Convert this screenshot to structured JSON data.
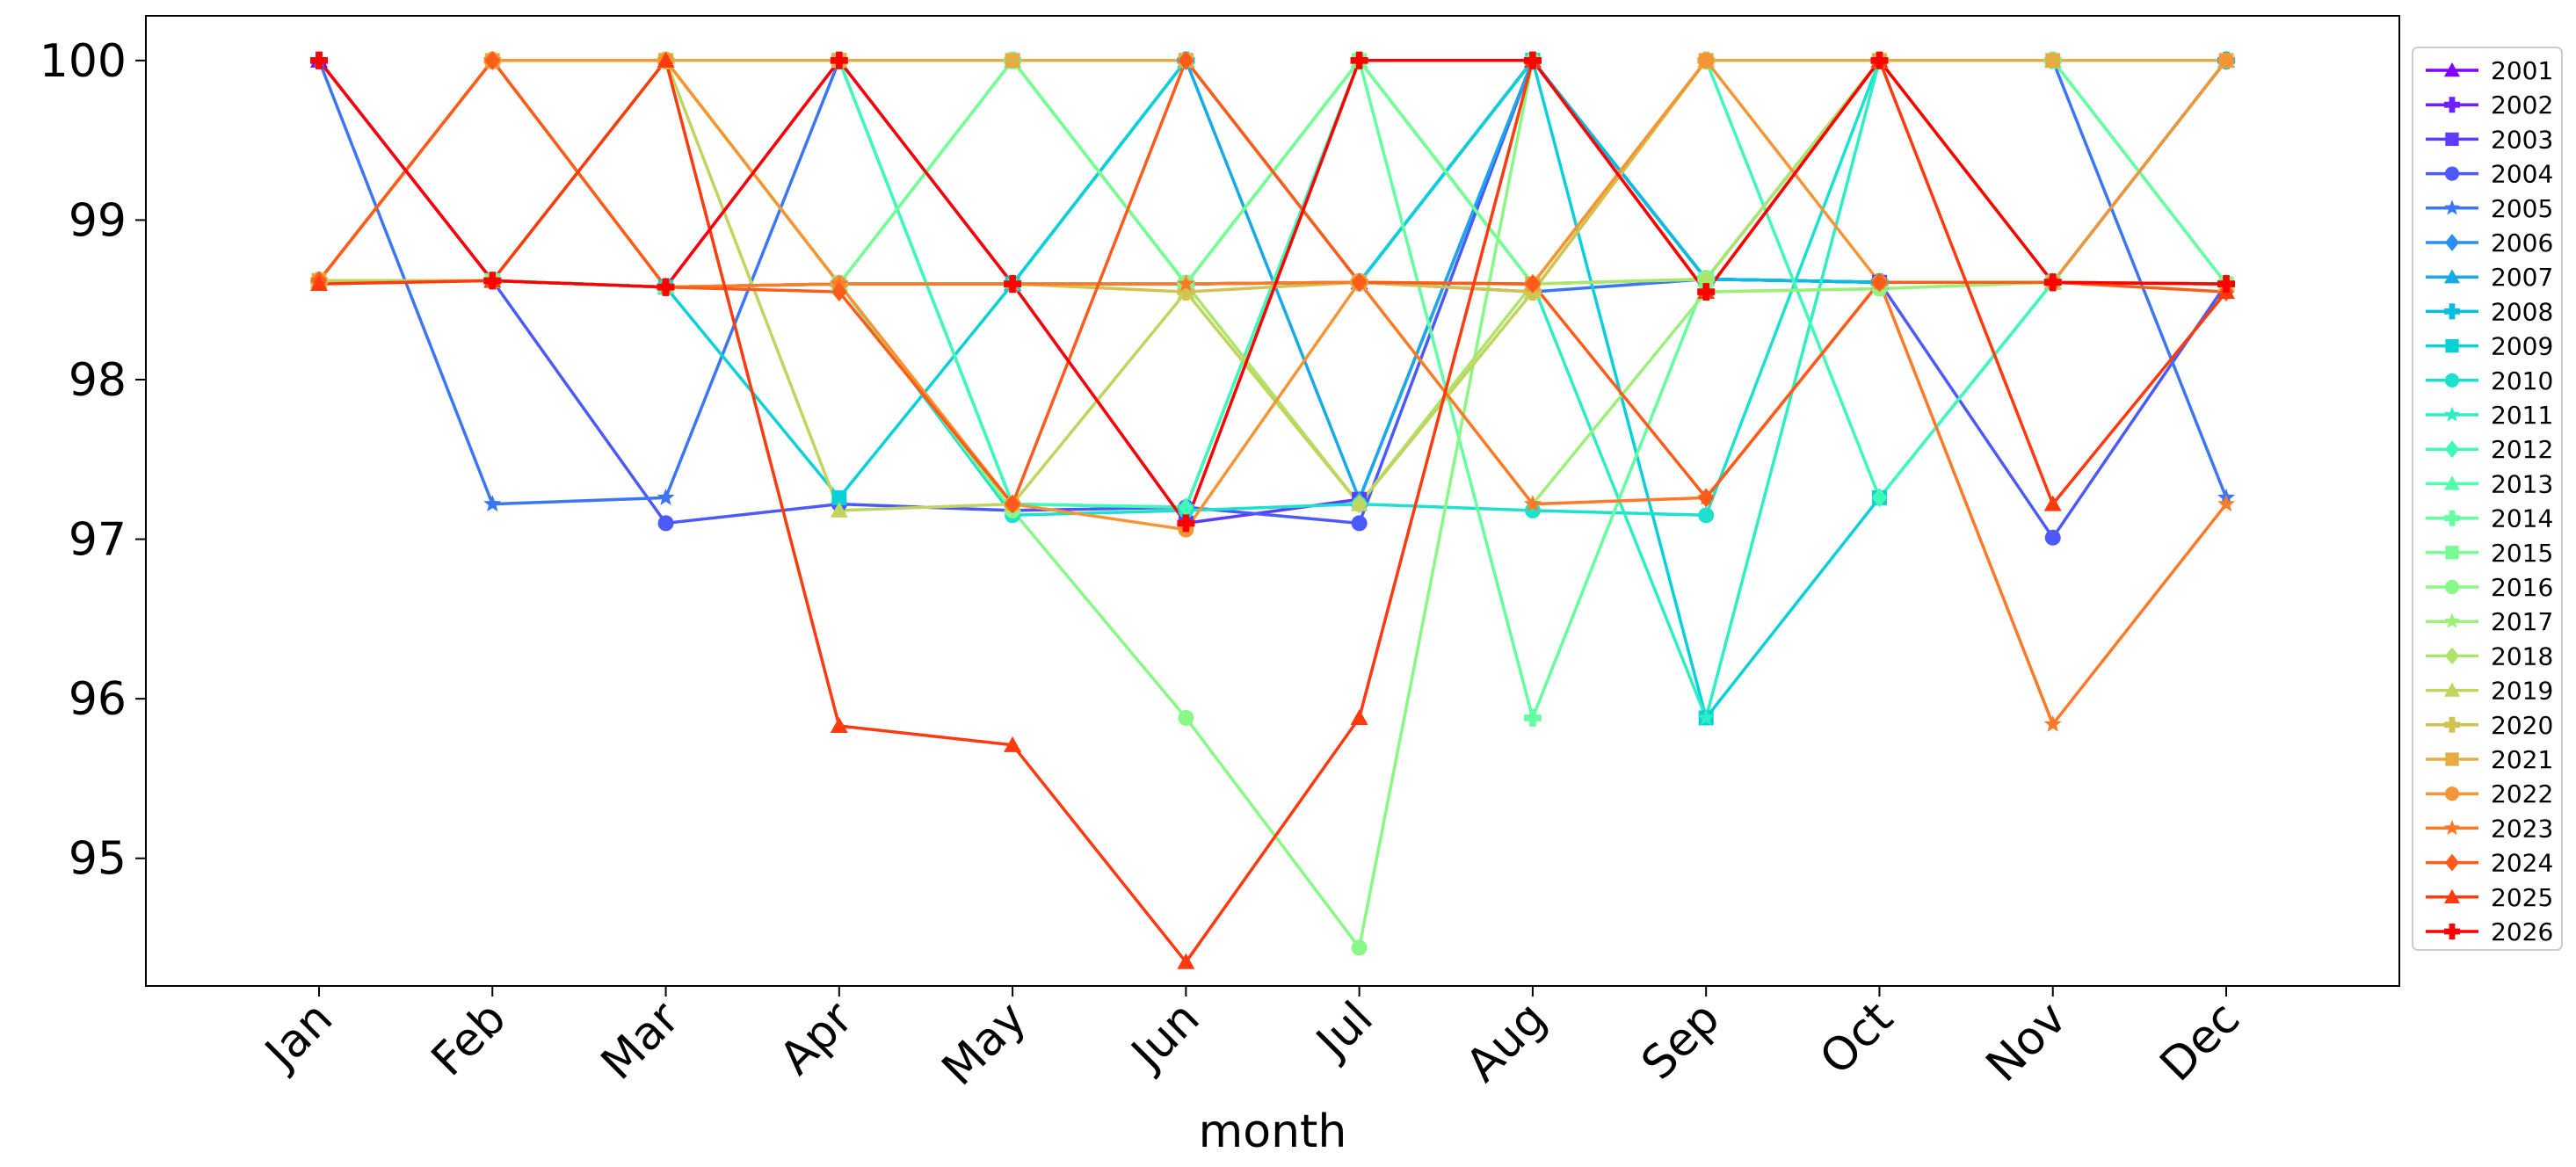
{
  "chart_data": {
    "type": "line",
    "xlabel": "month",
    "ylabel": "",
    "title": "",
    "categories": [
      "Jan",
      "Feb",
      "Mar",
      "Apr",
      "May",
      "Jun",
      "Jul",
      "Aug",
      "Sep",
      "Oct",
      "Nov",
      "Dec"
    ],
    "yticks": [
      95,
      96,
      97,
      98,
      99,
      100
    ],
    "ylim": [
      94.2,
      100.28
    ],
    "grid": false,
    "legend_position": "right",
    "series": [
      {
        "name": "2001",
        "color": "#8000ff",
        "marker": "triangle",
        "values": [
          100,
          98.62,
          98.58,
          98.6,
          98.6,
          98.6,
          98.61,
          100,
          98.63,
          98.61,
          98.61,
          98.6
        ]
      },
      {
        "name": "2002",
        "color": "#6f1fff",
        "marker": "plus",
        "values": [
          100,
          98.62,
          98.58,
          98.6,
          98.6,
          98.6,
          98.61,
          100,
          98.63,
          98.61,
          98.61,
          98.6
        ]
      },
      {
        "name": "2003",
        "color": "#5e3cfe",
        "marker": "square",
        "values": [
          98.62,
          98.62,
          98.58,
          100,
          98.6,
          97.1,
          97.25,
          100,
          98.63,
          98.61,
          98.61,
          98.6
        ]
      },
      {
        "name": "2004",
        "color": "#4c59fb",
        "marker": "circle",
        "values": [
          98.62,
          98.62,
          97.1,
          97.22,
          97.18,
          97.2,
          97.1,
          100,
          98.63,
          98.61,
          97.01,
          98.6
        ]
      },
      {
        "name": "2005",
        "color": "#3b76f6",
        "marker": "star",
        "values": [
          100,
          97.22,
          97.26,
          100,
          98.6,
          98.6,
          98.61,
          98.55,
          98.63,
          100,
          100,
          97.26
        ]
      },
      {
        "name": "2006",
        "color": "#2a90f0",
        "marker": "diamond",
        "values": [
          98.62,
          98.62,
          98.58,
          98.6,
          98.6,
          98.6,
          98.61,
          100,
          98.63,
          98.61,
          98.61,
          100
        ]
      },
      {
        "name": "2007",
        "color": "#18a9e9",
        "marker": "triangle",
        "values": [
          98.62,
          98.62,
          98.58,
          98.6,
          98.6,
          100,
          97.25,
          100,
          98.63,
          98.61,
          98.61,
          100
        ]
      },
      {
        "name": "2008",
        "color": "#07bee1",
        "marker": "plus",
        "values": [
          98.62,
          98.62,
          98.58,
          98.6,
          98.6,
          100,
          98.61,
          100,
          98.63,
          98.61,
          98.61,
          100
        ]
      },
      {
        "name": "2009",
        "color": "#0ad1d8",
        "marker": "square",
        "values": [
          98.62,
          98.62,
          98.58,
          97.26,
          98.6,
          100,
          98.61,
          100,
          95.88,
          97.26,
          98.61,
          98.6
        ]
      },
      {
        "name": "2010",
        "color": "#1ce1ce",
        "marker": "circle",
        "values": [
          98.62,
          98.62,
          98.58,
          98.6,
          97.15,
          97.18,
          97.22,
          97.18,
          97.15,
          100,
          98.61,
          98.6
        ]
      },
      {
        "name": "2011",
        "color": "#2eeec3",
        "marker": "star",
        "values": [
          98.62,
          98.62,
          100,
          100,
          97.22,
          97.2,
          100,
          98.6,
          95.88,
          100,
          98.61,
          98.6
        ]
      },
      {
        "name": "2012",
        "color": "#40f8b8",
        "marker": "diamond",
        "values": [
          98.62,
          98.62,
          100,
          100,
          97.22,
          97.2,
          100,
          98.6,
          100,
          97.26,
          98.61,
          98.6
        ]
      },
      {
        "name": "2013",
        "color": "#52feac",
        "marker": "triangle",
        "values": [
          98.62,
          98.62,
          98.58,
          98.6,
          100,
          98.6,
          100,
          98.6,
          98.63,
          100,
          100,
          98.6
        ]
      },
      {
        "name": "2014",
        "color": "#64ffa0",
        "marker": "plus",
        "values": [
          98.62,
          98.62,
          100,
          100,
          100,
          98.6,
          100,
          95.88,
          98.63,
          100,
          100,
          98.6
        ]
      },
      {
        "name": "2015",
        "color": "#77fe93",
        "marker": "square",
        "values": [
          98.62,
          98.62,
          100,
          98.6,
          100,
          98.6,
          100,
          98.6,
          98.63,
          100,
          98.61,
          98.6
        ]
      },
      {
        "name": "2016",
        "color": "#89f886",
        "marker": "circle",
        "values": [
          98.62,
          98.62,
          100,
          98.6,
          97.18,
          95.88,
          94.44,
          100,
          98.55,
          98.57,
          98.61,
          98.6
        ]
      },
      {
        "name": "2017",
        "color": "#9cf079",
        "marker": "star",
        "values": [
          98.62,
          98.62,
          98.58,
          98.6,
          98.6,
          98.6,
          98.61,
          97.22,
          98.55,
          98.57,
          98.61,
          98.6
        ]
      },
      {
        "name": "2018",
        "color": "#aee46b",
        "marker": "diamond",
        "values": [
          98.62,
          98.62,
          98.58,
          98.6,
          98.6,
          98.6,
          97.22,
          98.6,
          98.63,
          100,
          98.61,
          98.6
        ]
      },
      {
        "name": "2019",
        "color": "#c0d45e",
        "marker": "triangle",
        "values": [
          98.62,
          98.62,
          100,
          97.18,
          97.22,
          98.55,
          97.22,
          98.55,
          100,
          100,
          98.61,
          98.6
        ]
      },
      {
        "name": "2020",
        "color": "#d2c250",
        "marker": "plus",
        "values": [
          98.62,
          100,
          100,
          98.6,
          98.6,
          98.55,
          98.61,
          98.55,
          100,
          100,
          98.61,
          98.6
        ]
      },
      {
        "name": "2021",
        "color": "#e4ad43",
        "marker": "square",
        "values": [
          98.62,
          100,
          100,
          100,
          100,
          100,
          98.61,
          98.6,
          100,
          100,
          100,
          100
        ]
      },
      {
        "name": "2022",
        "color": "#f69535",
        "marker": "circle",
        "values": [
          98.62,
          100,
          100,
          98.6,
          97.22,
          97.06,
          98.61,
          98.6,
          100,
          98.61,
          98.61,
          100
        ]
      },
      {
        "name": "2023",
        "color": "#ff7a28",
        "marker": "star",
        "values": [
          98.62,
          100,
          98.58,
          98.6,
          98.6,
          98.6,
          98.61,
          97.22,
          97.26,
          98.61,
          95.84,
          97.22
        ]
      },
      {
        "name": "2024",
        "color": "#ff5c1b",
        "marker": "diamond",
        "values": [
          98.62,
          100,
          98.58,
          98.55,
          97.22,
          100,
          98.61,
          98.6,
          97.26,
          98.61,
          98.61,
          98.55
        ]
      },
      {
        "name": "2025",
        "color": "#ff3a0e",
        "marker": "triangle",
        "values": [
          98.6,
          98.62,
          100,
          95.83,
          95.71,
          94.35,
          95.88,
          100,
          98.55,
          100,
          97.22,
          98.55
        ]
      },
      {
        "name": "2026",
        "color": "#ff0000",
        "marker": "plus",
        "values": [
          100,
          98.62,
          98.58,
          100,
          98.6,
          97.1,
          100,
          100,
          98.55,
          100,
          98.61,
          98.6
        ]
      }
    ]
  }
}
